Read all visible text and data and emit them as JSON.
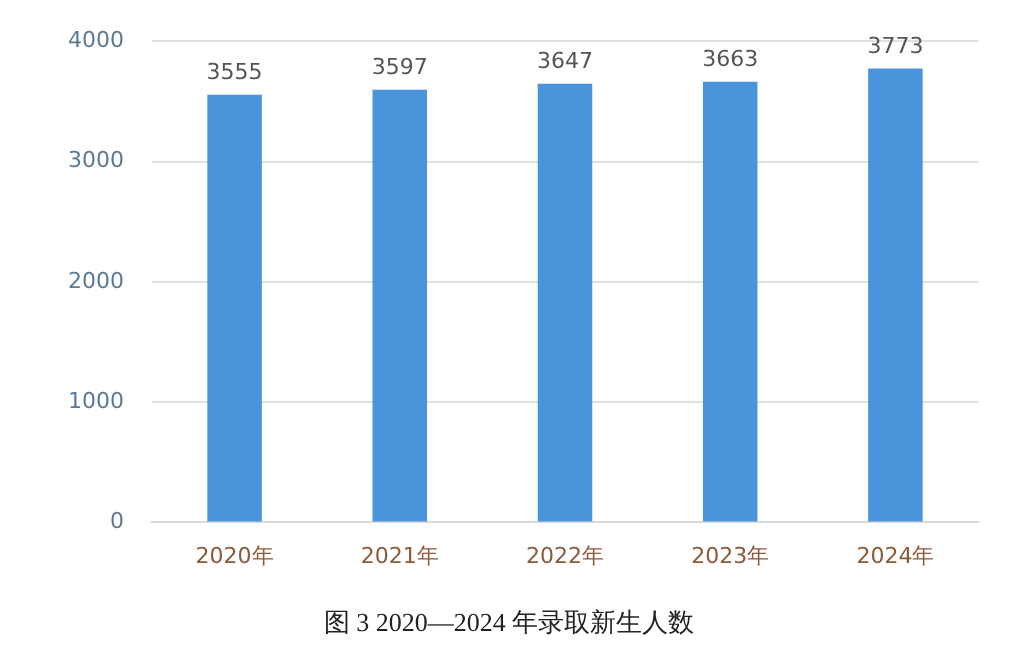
{
  "chart_data": {
    "type": "bar",
    "title": "图 3 2020—2024 年录取新生人数",
    "categories": [
      "2020年",
      "2021年",
      "2022年",
      "2023年",
      "2024年"
    ],
    "values": [
      3555,
      3597,
      3647,
      3663,
      3773
    ],
    "color": "#4a94dc",
    "ylim": [
      0,
      4000
    ],
    "yticks": [
      0,
      1000,
      2000,
      3000,
      4000
    ],
    "grid": "y",
    "data_labels": true
  }
}
